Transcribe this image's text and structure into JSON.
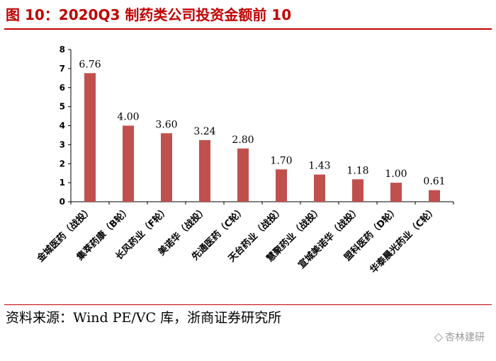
{
  "figure": {
    "title": "图 10：2020Q3 制药类公司投资金额前 10",
    "source": "资料来源：Wind PE/VC 库，浙商证券研究所",
    "watermark": "杏林建研",
    "bar_color": "#c0504d",
    "accent_color": "#c00000"
  },
  "chart_data": {
    "type": "bar",
    "title": "2020Q3 制药类公司投资金额前 10",
    "categories": [
      "金城医药（战投）",
      "集萃药康（B轮）",
      "长风药业（F轮）",
      "美诺华（战投）",
      "先通医药（C轮）",
      "天台药业（战投）",
      "慧聚药业（战投）",
      "宣城美诺华（战投）",
      "盟科医药（D轮）",
      "华泰晨光药业（C轮）"
    ],
    "values": [
      6.76,
      4.0,
      3.6,
      3.24,
      2.8,
      1.7,
      1.43,
      1.18,
      1.0,
      0.61
    ],
    "value_labels": [
      "6.76",
      "4.00",
      "3.60",
      "3.24",
      "2.80",
      "1.70",
      "1.43",
      "1.18",
      "1.00",
      "0.61"
    ],
    "ylim": [
      0,
      8
    ],
    "yticks": [
      "0",
      "1",
      "2",
      "3",
      "4",
      "5",
      "6",
      "7",
      "8"
    ],
    "xlabel": "",
    "ylabel": "",
    "grid": false
  }
}
